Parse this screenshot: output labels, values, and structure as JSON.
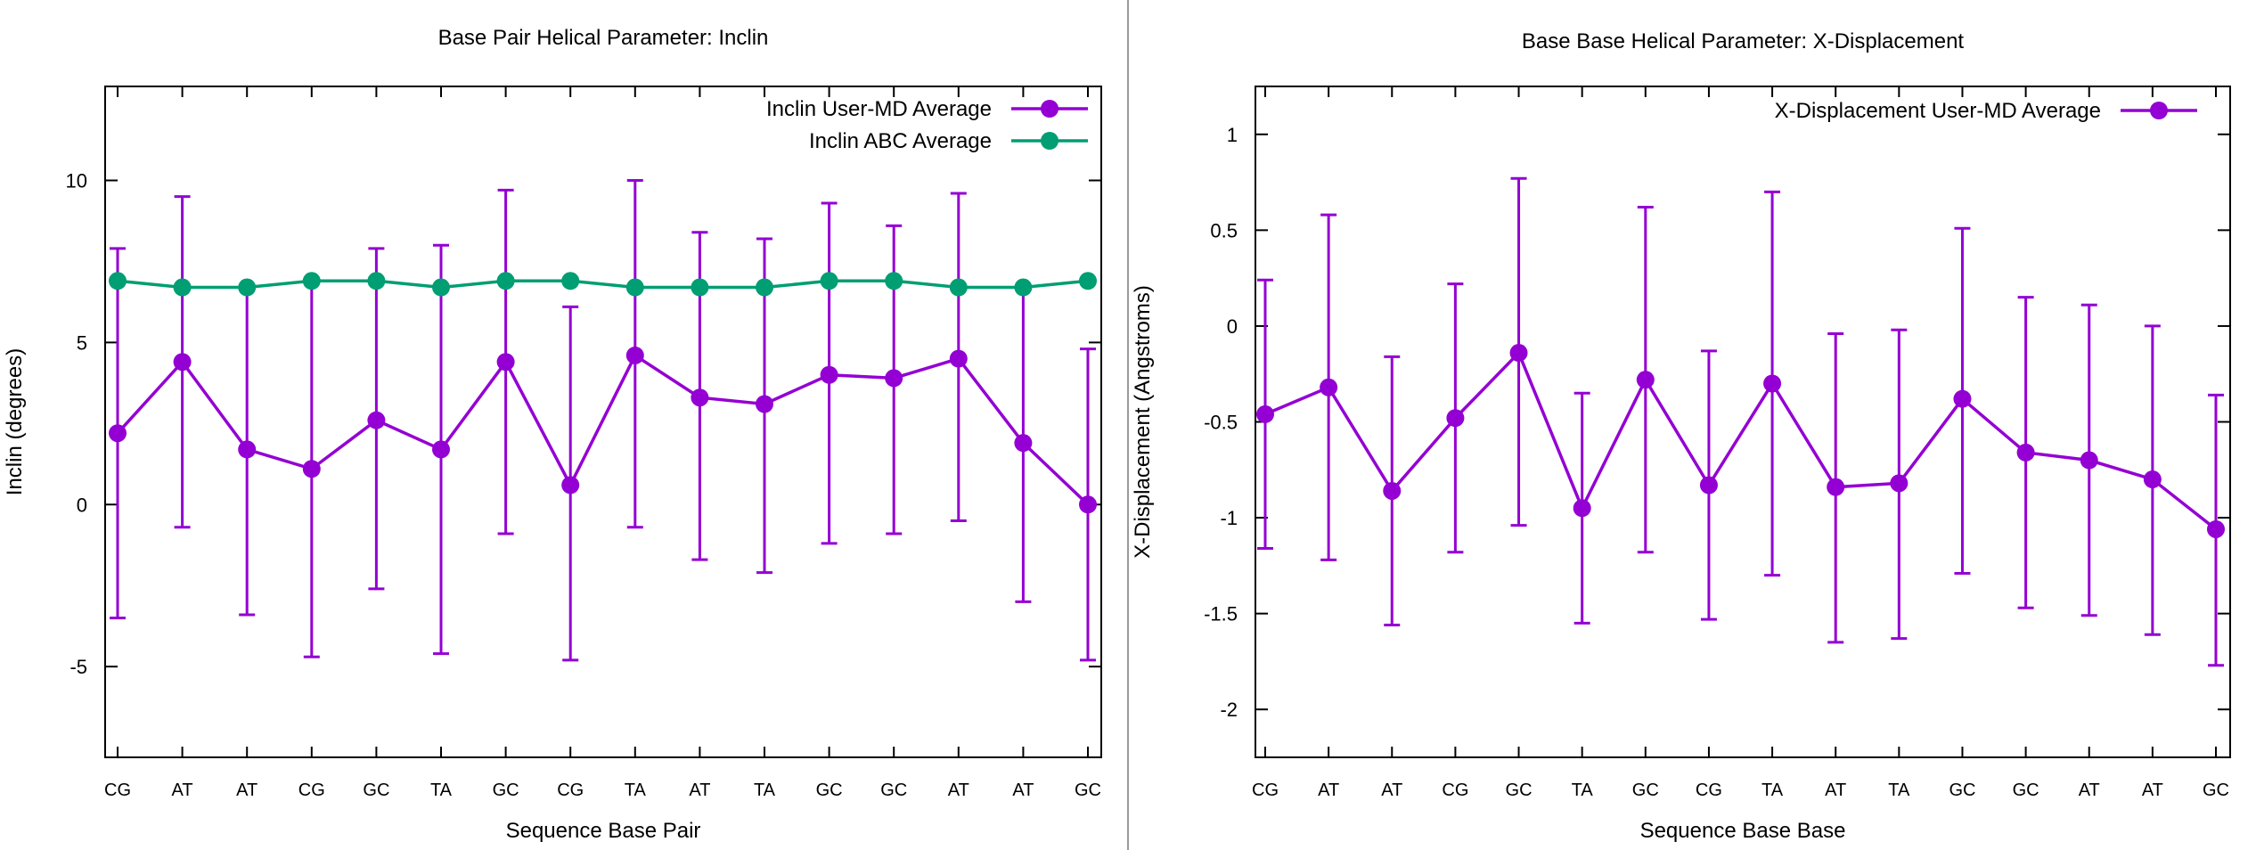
{
  "chart_data": [
    {
      "type": "line",
      "title": "Base Pair Helical Parameter: Inclin",
      "xlabel": "Sequence Base Pair",
      "ylabel": "Inclin (degrees)",
      "categories": [
        "CG",
        "AT",
        "AT",
        "CG",
        "GC",
        "TA",
        "GC",
        "CG",
        "TA",
        "AT",
        "TA",
        "GC",
        "GC",
        "AT",
        "AT",
        "GC"
      ],
      "ylim": [
        -7.8,
        12.9
      ],
      "yticks": [
        -5,
        0,
        5,
        10
      ],
      "grid": false,
      "legend_position": "top-right",
      "series": [
        {
          "name": "Inclin User-MD Average",
          "color": "#9400d3",
          "marker": "circle",
          "values": [
            2.2,
            4.4,
            1.7,
            1.1,
            2.6,
            1.7,
            4.4,
            0.6,
            4.6,
            3.3,
            3.1,
            4.0,
            3.9,
            4.5,
            1.9,
            0.0
          ],
          "error_low": [
            -3.5,
            -0.7,
            -3.4,
            -4.7,
            -2.6,
            -4.6,
            -0.9,
            -4.8,
            -0.7,
            -1.7,
            -2.1,
            -1.2,
            -0.9,
            -0.5,
            -3.0,
            -4.8
          ],
          "error_high": [
            7.9,
            9.5,
            6.7,
            6.9,
            7.9,
            8.0,
            9.7,
            6.1,
            10.0,
            8.4,
            8.2,
            9.3,
            8.6,
            9.6,
            6.7,
            4.8
          ]
        },
        {
          "name": "Inclin ABC Average",
          "color": "#009e73",
          "marker": "circle",
          "values": [
            6.9,
            6.7,
            6.7,
            6.9,
            6.9,
            6.7,
            6.9,
            6.9,
            6.7,
            6.7,
            6.7,
            6.9,
            6.9,
            6.7,
            6.7,
            6.9
          ]
        }
      ]
    },
    {
      "type": "line",
      "title": "Base Base Helical Parameter: X-Displacement",
      "xlabel": "Sequence Base Base",
      "ylabel": "X-Displacement (Angstroms)",
      "categories": [
        "CG",
        "AT",
        "AT",
        "CG",
        "GC",
        "TA",
        "GC",
        "CG",
        "TA",
        "AT",
        "TA",
        "GC",
        "GC",
        "AT",
        "AT",
        "GC"
      ],
      "ylim": [
        -2.25,
        1.25
      ],
      "yticks": [
        -2,
        -1.5,
        -1,
        -0.5,
        0,
        0.5,
        1
      ],
      "grid": false,
      "legend_position": "top-right",
      "series": [
        {
          "name": "X-Displacement User-MD Average",
          "color": "#9400d3",
          "marker": "circle",
          "values": [
            -0.46,
            -0.32,
            -0.86,
            -0.48,
            -0.14,
            -0.95,
            -0.28,
            -0.83,
            -0.3,
            -0.84,
            -0.82,
            -0.38,
            -0.66,
            -0.7,
            -0.8,
            -1.06
          ],
          "error_low": [
            -1.16,
            -1.22,
            -1.56,
            -1.18,
            -1.04,
            -1.55,
            -1.18,
            -1.53,
            -1.3,
            -1.65,
            -1.63,
            -1.29,
            -1.47,
            -1.51,
            -1.61,
            -1.77
          ],
          "error_high": [
            0.24,
            0.58,
            -0.16,
            0.22,
            0.77,
            -0.35,
            0.62,
            -0.13,
            0.7,
            -0.04,
            -0.02,
            0.51,
            0.15,
            0.11,
            0.0,
            -0.36
          ]
        }
      ]
    }
  ]
}
